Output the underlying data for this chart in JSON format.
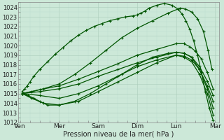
{
  "xlabel": "Pression niveau de la mer( hPa )",
  "bg_color": "#cce8d8",
  "grid_major_color": "#aaccbb",
  "grid_minor_color": "#bbddd0",
  "line_color": "#005500",
  "ylim": [
    1012,
    1024.5
  ],
  "ytick_min": 1012,
  "ytick_max": 1024,
  "xlabels": [
    "Ven",
    "Mer",
    "Sam",
    "Dim",
    "Lun",
    "Mar"
  ],
  "x_positions": [
    0,
    1,
    2,
    3,
    4,
    5
  ],
  "series": [
    {
      "x": [
        0.05,
        0.12,
        0.18,
        0.25,
        0.35,
        0.5,
        0.7,
        0.9,
        1.1,
        1.3,
        1.5,
        1.7,
        1.9,
        2.1,
        2.3,
        2.5,
        2.7,
        2.9,
        3.0,
        3.1,
        3.2,
        3.3,
        3.5,
        3.7,
        3.9,
        4.05,
        4.15,
        4.25,
        4.35,
        4.45,
        4.55,
        4.65,
        4.75,
        4.85,
        4.95
      ],
      "y": [
        1015.2,
        1015.5,
        1015.8,
        1016.2,
        1016.8,
        1017.5,
        1018.3,
        1019.1,
        1019.8,
        1020.5,
        1021.1,
        1021.6,
        1022.0,
        1022.3,
        1022.6,
        1022.8,
        1023.0,
        1023.1,
        1023.2,
        1023.4,
        1023.6,
        1023.9,
        1024.2,
        1024.4,
        1024.2,
        1023.8,
        1023.3,
        1022.6,
        1021.7,
        1020.5,
        1019.0,
        1017.2,
        1015.2,
        1013.5,
        1012.2
      ]
    },
    {
      "x": [
        0.05,
        0.3,
        0.6,
        1.0,
        1.4,
        1.8,
        2.2,
        2.6,
        3.0,
        3.4,
        3.8,
        4.1,
        4.25,
        4.4,
        4.55,
        4.7,
        4.82,
        4.92
      ],
      "y": [
        1015.0,
        1015.2,
        1015.5,
        1016.0,
        1017.0,
        1018.2,
        1019.5,
        1020.8,
        1021.8,
        1022.6,
        1023.4,
        1023.9,
        1023.8,
        1023.5,
        1022.8,
        1021.5,
        1019.5,
        1017.5
      ]
    },
    {
      "x": [
        0.05,
        0.5,
        1.0,
        1.5,
        2.0,
        2.5,
        3.0,
        3.5,
        4.0,
        4.2,
        4.35,
        4.5,
        4.65,
        4.8,
        4.95
      ],
      "y": [
        1015.0,
        1015.4,
        1015.8,
        1016.5,
        1017.3,
        1018.1,
        1019.0,
        1019.6,
        1020.2,
        1020.2,
        1019.9,
        1019.4,
        1018.6,
        1017.2,
        1015.5
      ]
    },
    {
      "x": [
        0.05,
        0.5,
        1.0,
        1.5,
        2.0,
        2.5,
        3.0,
        3.5,
        4.0,
        4.2,
        4.4,
        4.6,
        4.8,
        4.95
      ],
      "y": [
        1015.0,
        1015.2,
        1015.5,
        1016.0,
        1016.8,
        1017.5,
        1018.2,
        1018.8,
        1019.3,
        1019.2,
        1018.8,
        1017.8,
        1016.3,
        1014.8
      ]
    },
    {
      "x": [
        0.05,
        0.5,
        1.0,
        1.5,
        2.0,
        2.5,
        3.0,
        3.5,
        4.0,
        4.2,
        4.4,
        4.6,
        4.8,
        4.95
      ],
      "y": [
        1015.0,
        1014.8,
        1014.5,
        1015.0,
        1015.8,
        1016.8,
        1017.8,
        1018.5,
        1019.0,
        1018.9,
        1018.5,
        1017.5,
        1015.8,
        1014.2
      ]
    },
    {
      "x": [
        0.05,
        0.2,
        0.35,
        0.5,
        0.7,
        1.0,
        1.4,
        1.8,
        2.2,
        2.6,
        3.0,
        3.4,
        3.8,
        4.0,
        4.2,
        4.4,
        4.6,
        4.8,
        4.95
      ],
      "y": [
        1015.0,
        1014.8,
        1014.5,
        1014.2,
        1013.8,
        1013.8,
        1014.2,
        1015.0,
        1016.0,
        1017.0,
        1018.0,
        1018.8,
        1019.2,
        1019.3,
        1019.2,
        1018.8,
        1017.5,
        1015.5,
        1013.5
      ]
    },
    {
      "x": [
        0.05,
        0.3,
        0.6,
        1.0,
        1.5,
        2.0,
        2.5,
        3.0,
        3.5,
        4.0,
        4.2,
        4.4,
        4.6,
        4.8,
        4.95
      ],
      "y": [
        1015.0,
        1014.5,
        1014.0,
        1013.8,
        1014.2,
        1015.2,
        1016.2,
        1017.2,
        1018.2,
        1019.0,
        1018.8,
        1018.3,
        1017.0,
        1015.0,
        1012.8
      ]
    }
  ]
}
